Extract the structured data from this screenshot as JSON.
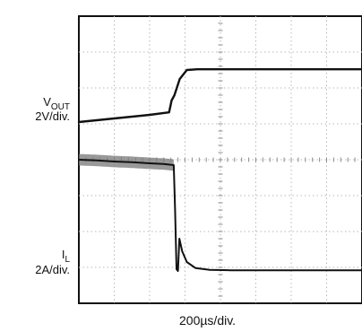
{
  "chart_data": {
    "type": "line",
    "title": "",
    "xlabel": "200µs/div.",
    "x_divisions": 8,
    "y_divisions": 8,
    "xlim": [
      0,
      8
    ],
    "ylim": [
      0,
      8
    ],
    "grid": true,
    "grid_style": "dotted with minor ticks",
    "x_unit": "div",
    "y_unit": "div",
    "channels": [
      {
        "name": "VOUT",
        "label_main": "V",
        "label_sub": "OUT",
        "scale": "2V/div.",
        "color": "#111111",
        "note": "output voltage step",
        "x": [
          0,
          1.0,
          2.0,
          2.55,
          2.62,
          2.7,
          2.85,
          3.05,
          3.35,
          4.0,
          5.0,
          6.0,
          7.0,
          8.0
        ],
        "y": [
          5.05,
          5.15,
          5.25,
          5.32,
          5.65,
          5.8,
          6.25,
          6.5,
          6.52,
          6.52,
          6.52,
          6.52,
          6.52,
          6.52
        ]
      },
      {
        "name": "IL",
        "label_main": "I",
        "label_sub": "L",
        "scale": "2A/div.",
        "color": "#111111",
        "note": "inductor current with ripple before step",
        "x": [
          0,
          0.5,
          1.0,
          1.5,
          2.0,
          2.4,
          2.68,
          2.72,
          2.76,
          2.8,
          2.84,
          2.92,
          3.05,
          3.3,
          3.7,
          4.3,
          5.0,
          6.0,
          7.0,
          8.0
        ],
        "y": [
          4.0,
          3.98,
          3.95,
          3.93,
          3.9,
          3.88,
          3.85,
          2.6,
          0.95,
          0.9,
          1.8,
          1.45,
          1.15,
          0.98,
          0.93,
          0.92,
          0.92,
          0.92,
          0.92,
          0.92
        ],
        "ripple_band": {
          "x_start": 0,
          "x_end": 2.68,
          "half_height_div": 0.16
        }
      }
    ]
  }
}
